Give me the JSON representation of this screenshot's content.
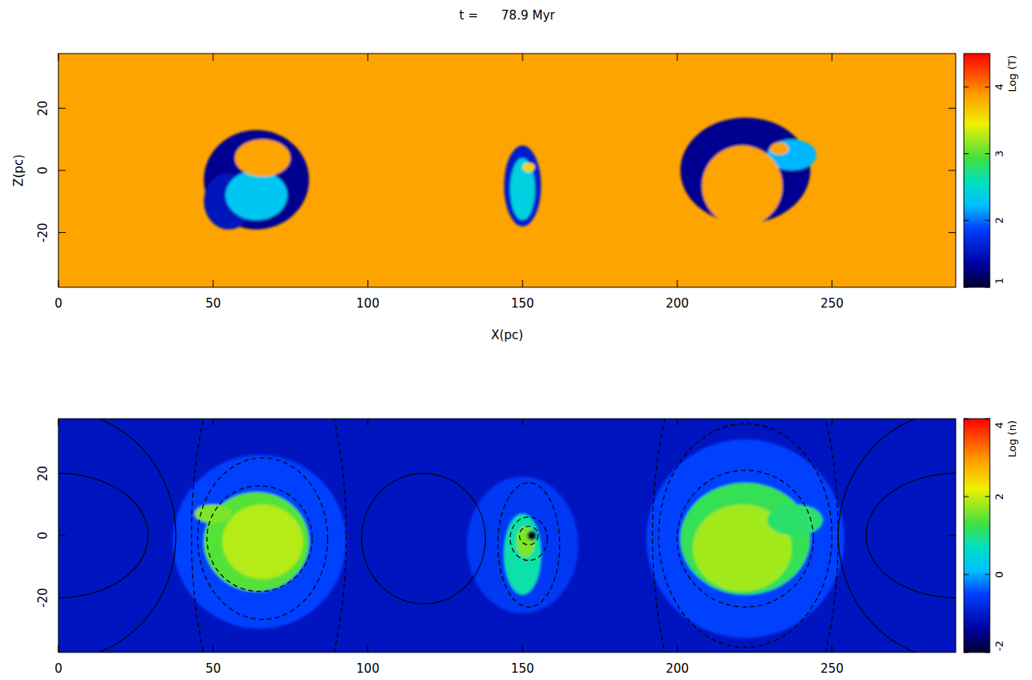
{
  "chart_data": [
    {
      "type": "heatmap",
      "title": "t =      78.9 Myr",
      "x_label": "X(pc)",
      "y_label": "Z(pc)",
      "xlim": [
        0,
        290
      ],
      "ylim": [
        -37.6,
        37.6
      ],
      "xticks": [
        0,
        50,
        100,
        150,
        200,
        250
      ],
      "yticks": [
        -20,
        0,
        20
      ],
      "background": 3.85,
      "colorbar": {
        "label": "Log (T)",
        "range": [
          1,
          4.5
        ],
        "ticks": [
          1,
          2,
          3,
          4
        ]
      },
      "clumps": [
        {
          "x": 64,
          "z": -3,
          "rx": 17,
          "rz": 16,
          "value": 1.3
        },
        {
          "x": 55,
          "z": -10,
          "rx": 8,
          "rz": 9,
          "value": 1.5
        },
        {
          "x": 64,
          "z": -8,
          "rx": 10,
          "rz": 8,
          "value": 2.3
        },
        {
          "x": 66,
          "z": 4,
          "rx": 9,
          "rz": 6,
          "value": 3.85
        },
        {
          "x": 150,
          "z": -5,
          "rx": 6,
          "rz": 13,
          "value": 1.6
        },
        {
          "x": 150,
          "z": -6,
          "rx": 4,
          "rz": 10,
          "value": 2.4
        },
        {
          "x": 152,
          "z": 1,
          "rx": 2,
          "rz": 1.5,
          "value": 3.6
        },
        {
          "x": 222,
          "z": 0,
          "rx": 21,
          "rz": 17,
          "value": 1.3
        },
        {
          "x": 237,
          "z": 5,
          "rx": 8,
          "rz": 5,
          "value": 2.2
        },
        {
          "x": 221,
          "z": -5,
          "rx": 13,
          "rz": 13,
          "value": 3.85
        },
        {
          "x": 233,
          "z": 7,
          "rx": 3,
          "rz": 2,
          "value": 3.85
        }
      ]
    },
    {
      "type": "heatmap",
      "xlim": [
        0,
        290
      ],
      "ylim": [
        -37.6,
        37.6
      ],
      "xticks": [
        0,
        50,
        100,
        150,
        200,
        250
      ],
      "yticks": [
        -20,
        0,
        20
      ],
      "background": -1.1,
      "colorbar": {
        "label": "Log (n)",
        "range": [
          -2,
          4
        ],
        "ticks": [
          -2,
          0,
          2,
          4
        ]
      },
      "clumps": [
        {
          "x": 65,
          "z": -2,
          "rx": 28,
          "rz": 28,
          "value": -0.5
        },
        {
          "x": 150,
          "z": -3,
          "rx": 18,
          "rz": 22,
          "value": -0.6
        },
        {
          "x": 222,
          "z": -1,
          "rx": 32,
          "rz": 32,
          "value": -0.5
        },
        {
          "x": 64,
          "z": -2,
          "rx": 17,
          "rz": 16,
          "value": 1.4
        },
        {
          "x": 66,
          "z": -2,
          "rx": 13,
          "rz": 12,
          "value": 1.9
        },
        {
          "x": 50,
          "z": 7,
          "rx": 6,
          "rz": 3,
          "value": 1.6
        },
        {
          "x": 150,
          "z": -6,
          "rx": 6,
          "rz": 13,
          "value": 0.8
        },
        {
          "x": 151,
          "z": -2,
          "rx": 3,
          "rz": 5,
          "value": 1.6
        },
        {
          "x": 222,
          "z": -1,
          "rx": 21,
          "rz": 18,
          "value": 1.2
        },
        {
          "x": 221,
          "z": -4,
          "rx": 16,
          "rz": 14,
          "value": 1.8
        },
        {
          "x": 238,
          "z": 5,
          "rx": 9,
          "rz": 5,
          "value": 1.1
        },
        {
          "x": 153,
          "z": 0,
          "rx": 1.5,
          "rz": 1.5,
          "value": -2
        }
      ],
      "contours": [
        {
          "x": 0,
          "z": 0,
          "rx": 38,
          "rz": 40,
          "line_style": "solid"
        },
        {
          "x": 0,
          "z": 0,
          "rx": 29,
          "rz": 20,
          "line_style": "solid"
        },
        {
          "x": 118,
          "z": -1,
          "rx": 20,
          "rz": 21,
          "line_style": "solid"
        },
        {
          "x": 290,
          "z": 0,
          "rx": 29,
          "rz": 20,
          "line_style": "solid"
        },
        {
          "x": 290,
          "z": 0,
          "rx": 38,
          "rz": 40,
          "line_style": "solid"
        },
        {
          "x": 65,
          "z": -1,
          "rx": 17,
          "rz": 17,
          "line_style": "dashed"
        },
        {
          "x": 66,
          "z": -1,
          "rx": 21,
          "rz": 26,
          "line_style": "dashed"
        },
        {
          "x": 68,
          "z": 0,
          "rx": 25,
          "rz": 70,
          "line_style": "dashed"
        },
        {
          "x": 152,
          "z": 0,
          "rx": 3,
          "rz": 3,
          "line_style": "dashed"
        },
        {
          "x": 152,
          "z": -1,
          "rx": 6,
          "rz": 7,
          "line_style": "dashed"
        },
        {
          "x": 152,
          "z": -3,
          "rx": 10,
          "rz": 20,
          "line_style": "dashed"
        },
        {
          "x": 222,
          "z": -1,
          "rx": 22,
          "rz": 22,
          "line_style": "dashed"
        },
        {
          "x": 222,
          "z": 0,
          "rx": 28,
          "rz": 36,
          "line_style": "dashed"
        },
        {
          "x": 222,
          "z": 0,
          "rx": 30,
          "rz": 75,
          "line_style": "dashed"
        }
      ]
    }
  ]
}
